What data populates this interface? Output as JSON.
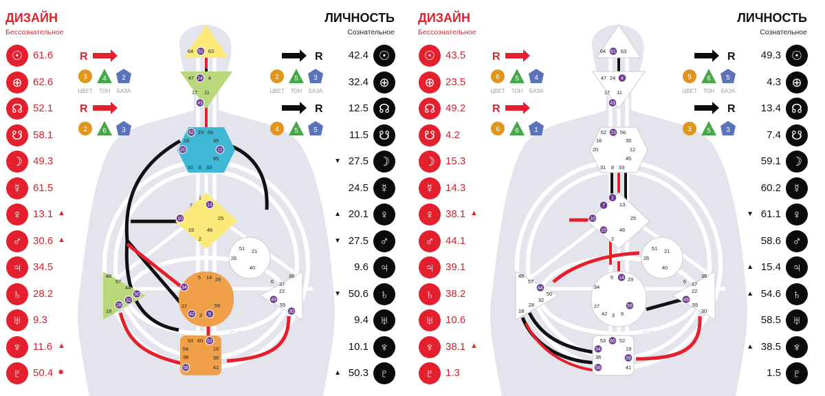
{
  "labels": {
    "design_title": "ДИЗАЙН",
    "design_subtitle": "Бессознательное",
    "personality_title": "ЛИЧНОСТЬ",
    "personality_subtitle": "Сознательное",
    "color_label": "ЦВЕТ",
    "tone_label": "ТОН",
    "base_label": "БАЗА",
    "retro": "R",
    "watermark": [
      "HUM",
      "DES",
      "COM"
    ]
  },
  "planet_icons": [
    "sun-icon",
    "earth-icon",
    "north-node-icon",
    "south-node-icon",
    "moon-icon",
    "mercury-icon",
    "venus-icon",
    "mars-icon",
    "jupiter-icon",
    "saturn-icon",
    "uranus-icon",
    "neptune-icon",
    "pluto-icon"
  ],
  "planet_glyphs": [
    "☉",
    "⊕",
    "☊",
    "☋",
    "☽",
    "☿",
    "♀",
    "♂",
    "♃",
    "♄",
    "♅",
    "♆",
    "♇"
  ],
  "colors": {
    "design_red": "#e5202e",
    "personality_black": "#0b0b0b",
    "color_badge": "#e0961c",
    "tone_badge": "#43a845",
    "base_badge": "#5b73b8",
    "head_yellow": "#fbe97a",
    "ajna_green": "#b9d87a",
    "throat_blue": "#3fb8d6",
    "g_yellow": "#fbe97a",
    "sacral_orange": "#f0a048",
    "spleen_green": "#b9d87a",
    "root_orange": "#f0a048"
  },
  "charts": [
    {
      "design": [
        "61.6",
        "62.6",
        "52.1",
        "58.1",
        "49.3",
        "61.5",
        "13.1",
        "30.6",
        "34.5",
        "28.2",
        "9.3",
        "11.6",
        "50.4"
      ],
      "design_marks": [
        "",
        "",
        "",
        "",
        "",
        "",
        "▲",
        "▲",
        "",
        "",
        "",
        "▲",
        "✸"
      ],
      "personality": [
        "42.4",
        "32.4",
        "12.5",
        "11.5",
        "27.5",
        "24.5",
        "20.1",
        "27.5",
        "9.6",
        "50.6",
        "9.4",
        "10.1",
        "50.3"
      ],
      "personality_marks": [
        "",
        "",
        "",
        "",
        "▼",
        "",
        "▲",
        "▼",
        "",
        "▼",
        "",
        "",
        "▲"
      ],
      "variables": {
        "design_top": [
          "3",
          "4",
          "2"
        ],
        "design_bottom": [
          "2",
          "6",
          "3"
        ],
        "personality_top": [
          "2",
          "5",
          "3"
        ],
        "personality_bottom": [
          "4",
          "5",
          "5"
        ]
      },
      "gates": {
        "head": [
          "64",
          "61",
          "63"
        ],
        "ajna": [
          "47",
          "24",
          "4",
          "17",
          "11",
          "43"
        ],
        "throat": [
          "62",
          "23",
          "56",
          "16",
          "35",
          "20",
          "12",
          "45",
          "31",
          "8",
          "33"
        ],
        "g": [
          "1",
          "13",
          "7",
          "10",
          "25",
          "15",
          "46",
          "2"
        ],
        "ego": [
          "51",
          "21",
          "26",
          "40"
        ],
        "sacral": [
          "5",
          "14",
          "29",
          "34",
          "27",
          "59",
          "42",
          "3",
          "9"
        ],
        "spleen": [
          "48",
          "57",
          "44",
          "50",
          "32",
          "28",
          "18"
        ],
        "esp": [
          "36",
          "6",
          "37",
          "22",
          "49",
          "55",
          "30"
        ],
        "root": [
          "53",
          "60",
          "52",
          "54",
          "19",
          "38",
          "39",
          "58",
          "41"
        ]
      },
      "active": [
        "61",
        "24",
        "43",
        "62",
        "20",
        "12",
        "13",
        "10",
        "34",
        "28",
        "50",
        "32",
        "42",
        "9",
        "49",
        "30",
        "52",
        "58"
      ]
    },
    {
      "design": [
        "43.5",
        "23.5",
        "49.2",
        "4.2",
        "15.3",
        "14.3",
        "38.1",
        "44.1",
        "39.1",
        "38.2",
        "10.6",
        "38.1",
        "1.3"
      ],
      "design_marks": [
        "",
        "",
        "",
        "",
        "",
        "",
        "▲",
        "",
        "",
        "",
        "",
        "▲",
        ""
      ],
      "personality": [
        "49.3",
        "4.3",
        "13.4",
        "7.4",
        "59.1",
        "60.2",
        "61.1",
        "58.6",
        "15.4",
        "54.6",
        "58.5",
        "38.5",
        "1.5"
      ],
      "personality_marks": [
        "",
        "",
        "",
        "",
        "",
        "",
        "▼",
        "",
        "▲",
        "▲",
        "",
        "▲",
        ""
      ],
      "variables": {
        "design_top": [
          "6",
          "5",
          "4"
        ],
        "design_bottom": [
          "6",
          "6",
          "1"
        ],
        "personality_top": [
          "5",
          "6",
          "5"
        ],
        "personality_bottom": [
          "3",
          "5",
          "3"
        ]
      },
      "gates": {
        "head": [
          "64",
          "61",
          "63"
        ],
        "ajna": [
          "47",
          "24",
          "4",
          "17",
          "11",
          "43"
        ],
        "throat": [
          "62",
          "23",
          "56",
          "16",
          "35",
          "20",
          "12",
          "45",
          "31",
          "8",
          "33"
        ],
        "g": [
          "1",
          "13",
          "7",
          "10",
          "25",
          "15",
          "46",
          "2"
        ],
        "ego": [
          "51",
          "21",
          "26",
          "40"
        ],
        "sacral": [
          "5",
          "14",
          "29",
          "34",
          "27",
          "59",
          "42",
          "3",
          "9"
        ],
        "spleen": [
          "48",
          "57",
          "44",
          "50",
          "32",
          "28",
          "18"
        ],
        "esp": [
          "36",
          "6",
          "37",
          "22",
          "49",
          "55",
          "30"
        ],
        "root": [
          "53",
          "60",
          "52",
          "54",
          "19",
          "38",
          "39",
          "58",
          "41"
        ]
      },
      "active": [
        "61",
        "4",
        "43",
        "23",
        "1",
        "7",
        "10",
        "15",
        "14",
        "59",
        "44",
        "49",
        "60",
        "54",
        "39",
        "58"
      ]
    }
  ]
}
